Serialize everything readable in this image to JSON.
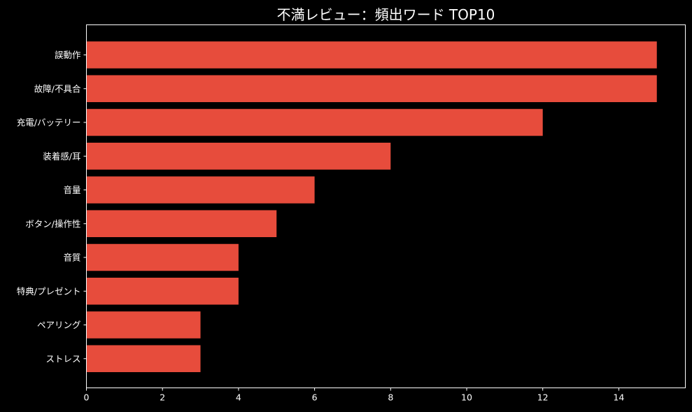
{
  "colors": {
    "background": "#000000",
    "bar": "#e74c3c",
    "text": "#ffffff",
    "axis": "#ffffff"
  },
  "chart_data": {
    "type": "bar",
    "orientation": "horizontal",
    "title": "不満レビュー：頻出ワード TOP10",
    "xlabel": "",
    "ylabel": "",
    "categories": [
      "誤動作",
      "故障/不具合",
      "充電/バッテリー",
      "装着感/耳",
      "音量",
      "ボタン/操作性",
      "音質",
      "特典/プレゼント",
      "ペアリング",
      "ストレス"
    ],
    "values": [
      15,
      15,
      12,
      8,
      6,
      5,
      4,
      4,
      3,
      3
    ],
    "xlim": [
      0,
      15.75
    ],
    "xticks": [
      0,
      2,
      4,
      6,
      8,
      10,
      12,
      14
    ],
    "xtick_labels": [
      "0",
      "2",
      "4",
      "6",
      "8",
      "10",
      "12",
      "14"
    ],
    "grid": false,
    "legend": "none"
  }
}
